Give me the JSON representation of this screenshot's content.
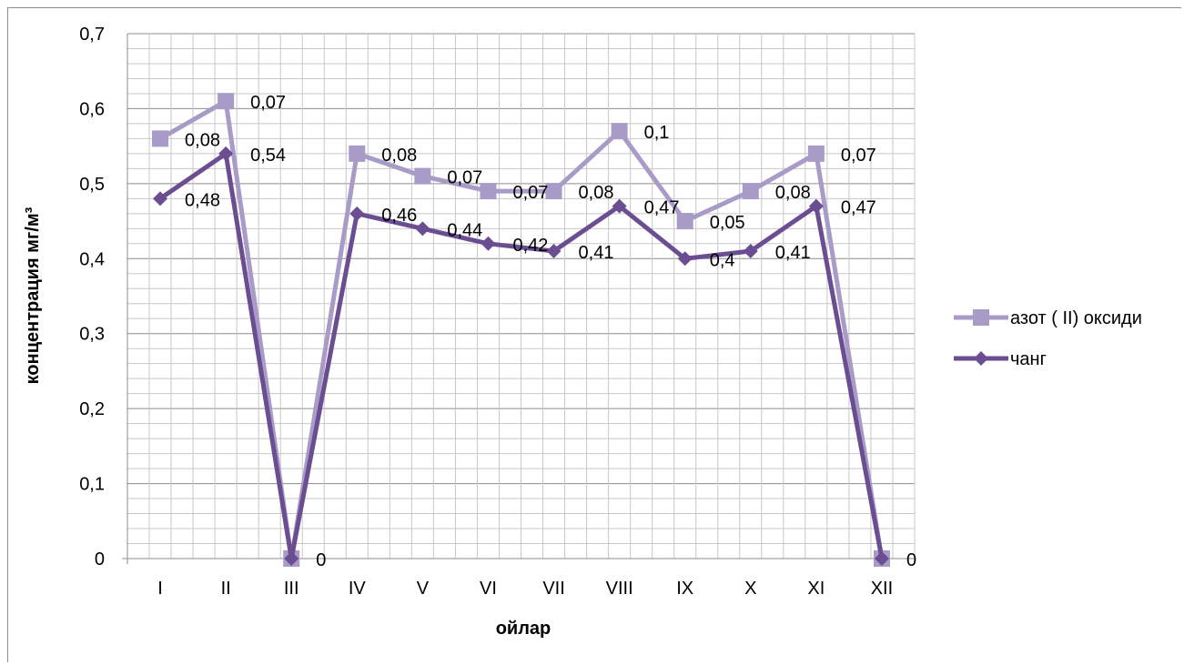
{
  "chart_data": {
    "type": "line",
    "title": "",
    "xlabel": "ойлар",
    "ylabel": "концентрация мг/м³",
    "categories": [
      "I",
      "II",
      "III",
      "IV",
      "V",
      "VI",
      "VII",
      "VIII",
      "IX",
      "X",
      "XI",
      "XII"
    ],
    "ylim": [
      0,
      0.7
    ],
    "yticks": [
      "0",
      "0,1",
      "0,2",
      "0,3",
      "0,4",
      "0,5",
      "0,6",
      "0,7"
    ],
    "grid": true,
    "legend_position": "right",
    "series": [
      {
        "name": "азот ( II) оксиди",
        "color": "#a89bc8",
        "marker": "square",
        "values": [
          0.56,
          0.61,
          0,
          0.54,
          0.51,
          0.49,
          0.49,
          0.57,
          0.45,
          0.49,
          0.54,
          0
        ],
        "labels": [
          "0,08",
          "0,07",
          "",
          "0,08",
          "0,07",
          "0,07",
          "0,08",
          "0,1",
          "0,05",
          "0,08",
          "0,07",
          "0"
        ]
      },
      {
        "name": "чанг",
        "color": "#6b4e91",
        "marker": "diamond",
        "values": [
          0.48,
          0.54,
          0,
          0.46,
          0.44,
          0.42,
          0.41,
          0.47,
          0.4,
          0.41,
          0.47,
          0
        ],
        "labels": [
          "0,48",
          "0,54",
          "0",
          "0,46",
          "0,44",
          "0,42",
          "0,41",
          "0,47",
          "0,4",
          "0,41",
          "0,47",
          ""
        ]
      }
    ]
  }
}
